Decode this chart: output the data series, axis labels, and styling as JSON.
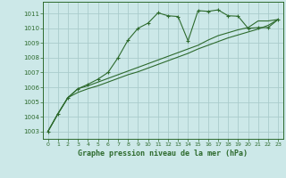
{
  "title": "Graphe pression niveau de la mer (hPa)",
  "background_color": "#cce8e8",
  "grid_color": "#aacccc",
  "line_color": "#2d6a2d",
  "xlim": [
    -0.5,
    23.5
  ],
  "ylim": [
    1002.5,
    1011.8
  ],
  "xticks": [
    0,
    1,
    2,
    3,
    4,
    5,
    6,
    7,
    8,
    9,
    10,
    11,
    12,
    13,
    14,
    15,
    16,
    17,
    18,
    19,
    20,
    21,
    22,
    23
  ],
  "yticks": [
    1003,
    1004,
    1005,
    1006,
    1007,
    1008,
    1009,
    1010,
    1011
  ],
  "series1_x": [
    0,
    1,
    2,
    3,
    4,
    5,
    6,
    7,
    8,
    9,
    10,
    11,
    12,
    13,
    14,
    15,
    16,
    17,
    18,
    19,
    20,
    21,
    22,
    23
  ],
  "series1_y": [
    1003.0,
    1004.2,
    1005.3,
    1005.9,
    1006.2,
    1006.55,
    1007.0,
    1008.0,
    1009.2,
    1010.0,
    1010.35,
    1011.05,
    1010.85,
    1010.8,
    1009.15,
    1011.2,
    1011.15,
    1011.25,
    1010.85,
    1010.82,
    1010.0,
    1010.05,
    1010.05,
    1010.6
  ],
  "series2_x": [
    0,
    1,
    2,
    3,
    4,
    5,
    6,
    7,
    8,
    9,
    10,
    11,
    12,
    13,
    14,
    15,
    16,
    17,
    18,
    19,
    20,
    21,
    22,
    23
  ],
  "series2_y": [
    1003.0,
    1004.2,
    1005.3,
    1005.9,
    1006.1,
    1006.35,
    1006.6,
    1006.85,
    1007.1,
    1007.35,
    1007.6,
    1007.85,
    1008.1,
    1008.35,
    1008.6,
    1008.85,
    1009.2,
    1009.5,
    1009.7,
    1009.9,
    1010.05,
    1010.5,
    1010.5,
    1010.6
  ],
  "series3_x": [
    0,
    1,
    2,
    3,
    4,
    5,
    6,
    7,
    8,
    9,
    10,
    11,
    12,
    13,
    14,
    15,
    16,
    17,
    18,
    19,
    20,
    21,
    22,
    23
  ],
  "series3_y": [
    1003.0,
    1004.2,
    1005.3,
    1005.65,
    1005.9,
    1006.1,
    1006.35,
    1006.6,
    1006.85,
    1007.05,
    1007.3,
    1007.55,
    1007.8,
    1008.05,
    1008.3,
    1008.6,
    1008.85,
    1009.1,
    1009.35,
    1009.55,
    1009.75,
    1009.95,
    1010.2,
    1010.6
  ]
}
